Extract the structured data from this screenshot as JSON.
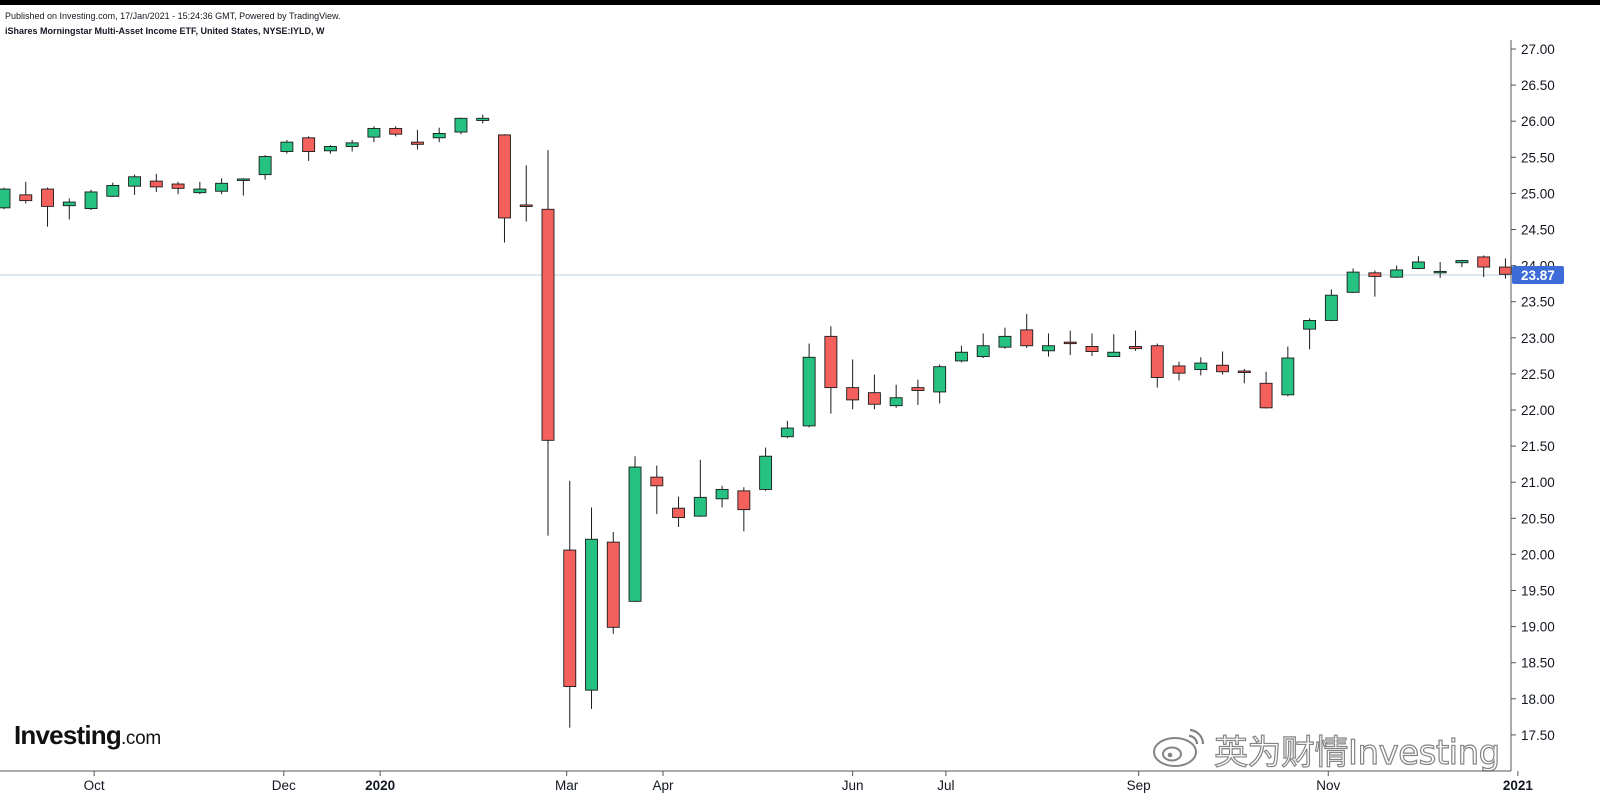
{
  "header": {
    "published": "Published on Investing.com, 17/Jan/2021 - 15:24:36 GMT, Powered by TradingView.",
    "symbol": "iShares Morningstar Multi-Asset Income ETF, United States, NYSE:IYLD, W"
  },
  "branding": {
    "logo_main": "Investing",
    "logo_suffix": ".com",
    "watermark_text": "英为财情Investing",
    "watermark_icon": "weibo-icon"
  },
  "colors": {
    "up": "#26c281",
    "down": "#f4605b",
    "wick": "#1b1b1b",
    "last_price_badge": "#3d6bd8",
    "last_price_line": "#b8cfe0",
    "axis_line": "#555555",
    "axis_text": "#131722"
  },
  "chart_data": {
    "type": "candlestick",
    "interval": "W",
    "ylim": [
      17.35,
      27.2
    ],
    "y_ticks": [
      "17.50",
      "18.00",
      "18.50",
      "19.00",
      "19.50",
      "20.00",
      "20.50",
      "21.00",
      "21.50",
      "22.00",
      "22.50",
      "23.00",
      "23.50",
      "24.00",
      "24.50",
      "25.00",
      "25.50",
      "26.00",
      "26.50",
      "27.00"
    ],
    "x_labels": [
      {
        "label": "Oct",
        "date": "2019-10-01",
        "bold": false
      },
      {
        "label": "Dec",
        "date": "2019-12-01",
        "bold": false
      },
      {
        "label": "2020",
        "date": "2020-01-01",
        "bold": true
      },
      {
        "label": "Mar",
        "date": "2020-03-01",
        "bold": false
      },
      {
        "label": "Apr",
        "date": "2020-04-01",
        "bold": false
      },
      {
        "label": "Jun",
        "date": "2020-06-01",
        "bold": false
      },
      {
        "label": "Jul",
        "date": "2020-07-01",
        "bold": false
      },
      {
        "label": "Sep",
        "date": "2020-09-01",
        "bold": false
      },
      {
        "label": "Nov",
        "date": "2020-11-01",
        "bold": false
      },
      {
        "label": "2021",
        "date": "2021-01-01",
        "bold": true
      }
    ],
    "last_price": "23.87",
    "candles": [
      {
        "date": "2019-09-02",
        "open": 24.8,
        "high": 25.08,
        "low": 24.78,
        "close": 25.06
      },
      {
        "date": "2019-09-09",
        "open": 24.98,
        "high": 25.16,
        "low": 24.86,
        "close": 24.9
      },
      {
        "date": "2019-09-16",
        "open": 25.06,
        "high": 25.08,
        "low": 24.54,
        "close": 24.82
      },
      {
        "date": "2019-09-23",
        "open": 24.83,
        "high": 24.93,
        "low": 24.64,
        "close": 24.88
      },
      {
        "date": "2019-09-30",
        "open": 24.79,
        "high": 25.05,
        "low": 24.77,
        "close": 25.02
      },
      {
        "date": "2019-10-07",
        "open": 24.96,
        "high": 25.15,
        "low": 24.95,
        "close": 25.11
      },
      {
        "date": "2019-10-14",
        "open": 25.1,
        "high": 25.26,
        "low": 24.98,
        "close": 25.23
      },
      {
        "date": "2019-10-21",
        "open": 25.17,
        "high": 25.27,
        "low": 25.02,
        "close": 25.09
      },
      {
        "date": "2019-10-28",
        "open": 25.13,
        "high": 25.16,
        "low": 24.99,
        "close": 25.07
      },
      {
        "date": "2019-11-04",
        "open": 25.01,
        "high": 25.16,
        "low": 24.99,
        "close": 25.06
      },
      {
        "date": "2019-11-11",
        "open": 25.03,
        "high": 25.21,
        "low": 24.99,
        "close": 25.14
      },
      {
        "date": "2019-11-18",
        "open": 25.18,
        "high": 25.21,
        "low": 24.97,
        "close": 25.2
      },
      {
        "date": "2019-11-25",
        "open": 25.26,
        "high": 25.53,
        "low": 25.19,
        "close": 25.51
      },
      {
        "date": "2019-12-02",
        "open": 25.58,
        "high": 25.74,
        "low": 25.55,
        "close": 25.71
      },
      {
        "date": "2019-12-09",
        "open": 25.77,
        "high": 25.79,
        "low": 25.45,
        "close": 25.58
      },
      {
        "date": "2019-12-16",
        "open": 25.59,
        "high": 25.67,
        "low": 25.55,
        "close": 25.65
      },
      {
        "date": "2019-12-23",
        "open": 25.65,
        "high": 25.74,
        "low": 25.58,
        "close": 25.7
      },
      {
        "date": "2019-12-30",
        "open": 25.78,
        "high": 25.93,
        "low": 25.71,
        "close": 25.9
      },
      {
        "date": "2020-01-06",
        "open": 25.9,
        "high": 25.93,
        "low": 25.79,
        "close": 25.82
      },
      {
        "date": "2020-01-13",
        "open": 25.71,
        "high": 25.88,
        "low": 25.61,
        "close": 25.68
      },
      {
        "date": "2020-01-20",
        "open": 25.77,
        "high": 25.91,
        "low": 25.71,
        "close": 25.83
      },
      {
        "date": "2020-01-27",
        "open": 25.85,
        "high": 26.05,
        "low": 25.82,
        "close": 26.04
      },
      {
        "date": "2020-02-03",
        "open": 26.01,
        "high": 26.09,
        "low": 25.97,
        "close": 26.04
      },
      {
        "date": "2020-02-10",
        "open": 25.81,
        "high": 25.82,
        "low": 24.32,
        "close": 24.66
      },
      {
        "date": "2020-02-17",
        "open": 24.84,
        "high": 25.39,
        "low": 24.61,
        "close": 24.82
      },
      {
        "date": "2020-02-24",
        "open": 24.78,
        "high": 25.6,
        "low": 20.26,
        "close": 21.58
      },
      {
        "date": "2020-03-02",
        "open": 20.06,
        "high": 21.02,
        "low": 17.6,
        "close": 18.17
      },
      {
        "date": "2020-03-09",
        "open": 18.12,
        "high": 20.65,
        "low": 17.86,
        "close": 20.21
      },
      {
        "date": "2020-03-16",
        "open": 20.17,
        "high": 20.31,
        "low": 18.9,
        "close": 18.99
      },
      {
        "date": "2020-03-23",
        "open": 19.35,
        "high": 21.36,
        "low": 19.34,
        "close": 21.21
      },
      {
        "date": "2020-03-30",
        "open": 21.07,
        "high": 21.23,
        "low": 20.56,
        "close": 20.95
      },
      {
        "date": "2020-04-06",
        "open": 20.64,
        "high": 20.8,
        "low": 20.38,
        "close": 20.51
      },
      {
        "date": "2020-04-13",
        "open": 20.53,
        "high": 21.31,
        "low": 20.52,
        "close": 20.79
      },
      {
        "date": "2020-04-20",
        "open": 20.77,
        "high": 20.95,
        "low": 20.65,
        "close": 20.9
      },
      {
        "date": "2020-04-27",
        "open": 20.88,
        "high": 20.93,
        "low": 20.32,
        "close": 20.62
      },
      {
        "date": "2020-05-04",
        "open": 20.9,
        "high": 21.48,
        "low": 20.88,
        "close": 21.36
      },
      {
        "date": "2020-05-11",
        "open": 21.63,
        "high": 21.85,
        "low": 21.61,
        "close": 21.75
      },
      {
        "date": "2020-05-18",
        "open": 21.78,
        "high": 22.92,
        "low": 21.76,
        "close": 22.73
      },
      {
        "date": "2020-05-25",
        "open": 23.02,
        "high": 23.16,
        "low": 21.95,
        "close": 22.31
      },
      {
        "date": "2020-06-01",
        "open": 22.31,
        "high": 22.7,
        "low": 22.01,
        "close": 22.14
      },
      {
        "date": "2020-06-08",
        "open": 22.24,
        "high": 22.49,
        "low": 22.01,
        "close": 22.08
      },
      {
        "date": "2020-06-15",
        "open": 22.06,
        "high": 22.35,
        "low": 22.03,
        "close": 22.17
      },
      {
        "date": "2020-06-22",
        "open": 22.31,
        "high": 22.42,
        "low": 22.07,
        "close": 22.27
      },
      {
        "date": "2020-06-29",
        "open": 22.25,
        "high": 22.63,
        "low": 22.09,
        "close": 22.6
      },
      {
        "date": "2020-07-06",
        "open": 22.68,
        "high": 22.89,
        "low": 22.66,
        "close": 22.8
      },
      {
        "date": "2020-07-13",
        "open": 22.74,
        "high": 23.06,
        "low": 22.72,
        "close": 22.89
      },
      {
        "date": "2020-07-20",
        "open": 22.87,
        "high": 23.14,
        "low": 22.85,
        "close": 23.02
      },
      {
        "date": "2020-07-27",
        "open": 23.11,
        "high": 23.33,
        "low": 22.86,
        "close": 22.89
      },
      {
        "date": "2020-08-03",
        "open": 22.82,
        "high": 23.06,
        "low": 22.74,
        "close": 22.89
      },
      {
        "date": "2020-08-10",
        "open": 22.94,
        "high": 23.1,
        "low": 22.76,
        "close": 22.92
      },
      {
        "date": "2020-08-17",
        "open": 22.88,
        "high": 23.06,
        "low": 22.75,
        "close": 22.81
      },
      {
        "date": "2020-08-24",
        "open": 22.74,
        "high": 23.05,
        "low": 22.74,
        "close": 22.8
      },
      {
        "date": "2020-08-31",
        "open": 22.88,
        "high": 23.1,
        "low": 22.82,
        "close": 22.85
      },
      {
        "date": "2020-09-07",
        "open": 22.89,
        "high": 22.92,
        "low": 22.31,
        "close": 22.45
      },
      {
        "date": "2020-09-14",
        "open": 22.61,
        "high": 22.67,
        "low": 22.41,
        "close": 22.51
      },
      {
        "date": "2020-09-21",
        "open": 22.56,
        "high": 22.73,
        "low": 22.48,
        "close": 22.65
      },
      {
        "date": "2020-09-28",
        "open": 22.62,
        "high": 22.81,
        "low": 22.49,
        "close": 22.53
      },
      {
        "date": "2020-10-05",
        "open": 22.54,
        "high": 22.57,
        "low": 22.37,
        "close": 22.53
      },
      {
        "date": "2020-10-12",
        "open": 22.37,
        "high": 22.53,
        "low": 22.02,
        "close": 22.03
      },
      {
        "date": "2020-10-19",
        "open": 22.21,
        "high": 22.88,
        "low": 22.19,
        "close": 22.72
      },
      {
        "date": "2020-10-26",
        "open": 23.12,
        "high": 23.27,
        "low": 22.84,
        "close": 23.24
      },
      {
        "date": "2020-11-02",
        "open": 23.24,
        "high": 23.67,
        "low": 23.23,
        "close": 23.59
      },
      {
        "date": "2020-11-09",
        "open": 23.63,
        "high": 23.96,
        "low": 23.62,
        "close": 23.91
      },
      {
        "date": "2020-11-16",
        "open": 23.9,
        "high": 23.93,
        "low": 23.57,
        "close": 23.85
      },
      {
        "date": "2020-11-23",
        "open": 23.84,
        "high": 24.0,
        "low": 23.83,
        "close": 23.94
      },
      {
        "date": "2020-11-30",
        "open": 23.96,
        "high": 24.13,
        "low": 23.95,
        "close": 24.05
      },
      {
        "date": "2020-12-07",
        "open": 23.92,
        "high": 24.05,
        "low": 23.83,
        "close": 23.92
      },
      {
        "date": "2020-12-14",
        "open": 24.04,
        "high": 24.08,
        "low": 23.98,
        "close": 24.07
      },
      {
        "date": "2020-12-21",
        "open": 24.12,
        "high": 24.14,
        "low": 23.84,
        "close": 23.98
      },
      {
        "date": "2020-12-28",
        "open": 23.98,
        "high": 24.1,
        "low": 23.82,
        "close": 23.88
      }
    ]
  }
}
